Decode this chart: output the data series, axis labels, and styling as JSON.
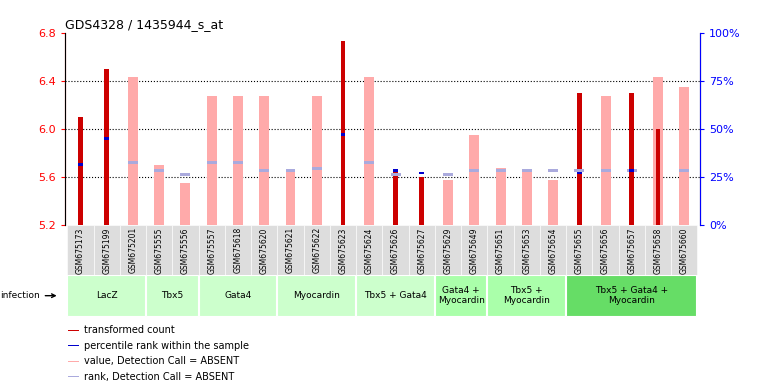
{
  "title": "GDS4328 / 1435944_s_at",
  "samples": [
    "GSM675173",
    "GSM675199",
    "GSM675201",
    "GSM675555",
    "GSM675556",
    "GSM675557",
    "GSM675618",
    "GSM675620",
    "GSM675621",
    "GSM675622",
    "GSM675623",
    "GSM675624",
    "GSM675626",
    "GSM675627",
    "GSM675629",
    "GSM675649",
    "GSM675651",
    "GSM675653",
    "GSM675654",
    "GSM675655",
    "GSM675656",
    "GSM675657",
    "GSM675658",
    "GSM675660"
  ],
  "red_values": [
    6.1,
    6.5,
    null,
    null,
    null,
    null,
    null,
    null,
    null,
    null,
    6.73,
    null,
    5.65,
    5.6,
    null,
    null,
    null,
    null,
    null,
    6.3,
    null,
    6.3,
    6.0,
    null
  ],
  "pink_values": [
    null,
    null,
    6.43,
    5.7,
    5.55,
    6.27,
    6.27,
    6.27,
    5.65,
    6.27,
    null,
    6.43,
    null,
    null,
    5.57,
    5.95,
    5.67,
    5.65,
    5.57,
    null,
    6.27,
    null,
    6.43,
    6.35
  ],
  "blue_values": [
    5.7,
    5.92,
    null,
    null,
    null,
    null,
    null,
    null,
    null,
    null,
    5.95,
    null,
    5.65,
    5.63,
    null,
    null,
    null,
    null,
    null,
    5.63,
    null,
    5.65,
    null,
    null
  ],
  "lightblue_values": [
    null,
    null,
    5.72,
    5.65,
    5.62,
    5.72,
    5.72,
    5.65,
    5.65,
    5.67,
    null,
    5.72,
    5.62,
    null,
    5.62,
    5.65,
    5.65,
    5.65,
    5.65,
    5.65,
    5.65,
    5.65,
    null,
    5.65
  ],
  "ymin": 5.2,
  "ymax": 6.8,
  "yticks_left": [
    5.2,
    5.6,
    6.0,
    6.4,
    6.8
  ],
  "right_yticks_pct": [
    0,
    25,
    50,
    75,
    100
  ],
  "group_boundaries": [
    {
      "start": 0,
      "end": 3,
      "label": "LacZ",
      "color": "#ccffcc"
    },
    {
      "start": 3,
      "end": 5,
      "label": "Tbx5",
      "color": "#ccffcc"
    },
    {
      "start": 5,
      "end": 8,
      "label": "Gata4",
      "color": "#ccffcc"
    },
    {
      "start": 8,
      "end": 11,
      "label": "Myocardin",
      "color": "#ccffcc"
    },
    {
      "start": 11,
      "end": 14,
      "label": "Tbx5 + Gata4",
      "color": "#ccffcc"
    },
    {
      "start": 14,
      "end": 16,
      "label": "Gata4 +\nMyocardin",
      "color": "#aaffaa"
    },
    {
      "start": 16,
      "end": 19,
      "label": "Tbx5 +\nMyocardin",
      "color": "#aaffaa"
    },
    {
      "start": 19,
      "end": 24,
      "label": "Tbx5 + Gata4 +\nMyocardin",
      "color": "#66dd66"
    }
  ],
  "red_color": "#cc0000",
  "pink_color": "#ffaaaa",
  "blue_color": "#0000cc",
  "lightblue_color": "#aaaadd",
  "bg_color": "#ffffff",
  "sample_bg": "#dddddd"
}
